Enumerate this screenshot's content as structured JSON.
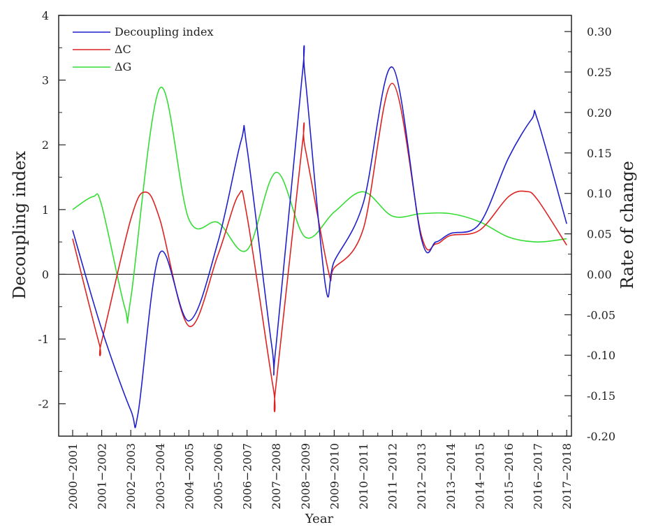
{
  "chart_data": {
    "type": "line",
    "xlabel": "Year",
    "ylabel_left": "Decoupling index",
    "ylabel_right": "Rate  of change",
    "grid": false,
    "legend_position": "top-left",
    "categories": [
      "2000−2001",
      "2001−2002",
      "2002−2003",
      "2003−2004",
      "2004−2005",
      "2005−2006",
      "2006−2007",
      "2007−2008",
      "2008−2009",
      "2009−2010",
      "2010−2011",
      "2011−2012",
      "2012−2013",
      "2013−2014",
      "2014−2015",
      "2015−2016",
      "2016−2017",
      "2017−2018"
    ],
    "left_axis": {
      "min": -2.5,
      "max": 4,
      "ticks": [
        4,
        3,
        2,
        1,
        0,
        -1,
        -2
      ],
      "tick_labels": [
        "4",
        "3",
        "2",
        "1",
        "0",
        "-1",
        "-2"
      ]
    },
    "right_axis": {
      "min": -0.2,
      "max": 0.32,
      "ticks": [
        0.3,
        0.25,
        0.2,
        0.15,
        0.1,
        0.05,
        0.0,
        -0.05,
        -0.1,
        -0.15,
        -0.2
      ],
      "tick_labels": [
        "0.30",
        "0.25",
        "0.20",
        "0.15",
        "0.10",
        "0.05",
        "0.00",
        "-0.05",
        "-0.10",
        "-0.15",
        "-0.20"
      ]
    },
    "series": [
      {
        "name": "Decoupling index",
        "axis": "left",
        "color": "#1f1fcc",
        "points": [
          [
            0,
            0.68
          ],
          [
            1,
            -0.85
          ],
          [
            2,
            -2.1
          ],
          [
            2.25,
            -2.15
          ],
          [
            3,
            0.33
          ],
          [
            4,
            -0.72
          ],
          [
            5,
            0.5
          ],
          [
            5.8,
            2.07
          ],
          [
            6,
            1.95
          ],
          [
            6.85,
            -1.1
          ],
          [
            7,
            -1.1
          ],
          [
            7.9,
            3.08
          ],
          [
            8,
            3.05
          ],
          [
            8.7,
            -0.18
          ],
          [
            9,
            0.2
          ],
          [
            10,
            1.1
          ],
          [
            11,
            3.2
          ],
          [
            12,
            0.55
          ],
          [
            12.5,
            0.5
          ],
          [
            13,
            0.63
          ],
          [
            14,
            0.78
          ],
          [
            15,
            1.8
          ],
          [
            15.8,
            2.4
          ],
          [
            16,
            2.38
          ],
          [
            17,
            0.78
          ]
        ]
      },
      {
        "name": "ΔC",
        "axis": "left",
        "color": "#dd2222",
        "points": [
          [
            0,
            0.55
          ],
          [
            0.9,
            -1.05
          ],
          [
            1,
            -1.03
          ],
          [
            2,
            0.85
          ],
          [
            2.5,
            1.27
          ],
          [
            3,
            0.85
          ],
          [
            4,
            -0.8
          ],
          [
            5,
            0.3
          ],
          [
            5.7,
            1.22
          ],
          [
            6,
            0.9
          ],
          [
            6.9,
            -1.75
          ],
          [
            7,
            -1.7
          ],
          [
            7.9,
            2.0
          ],
          [
            8,
            1.95
          ],
          [
            8.8,
            0.05
          ],
          [
            9,
            0.1
          ],
          [
            10,
            0.7
          ],
          [
            11,
            2.95
          ],
          [
            12,
            0.6
          ],
          [
            12.5,
            0.47
          ],
          [
            13,
            0.6
          ],
          [
            14,
            0.68
          ],
          [
            15,
            1.2
          ],
          [
            15.6,
            1.28
          ],
          [
            16,
            1.15
          ],
          [
            17,
            0.45
          ]
        ]
      },
      {
        "name": "ΔG",
        "axis": "right",
        "color": "#33dd33",
        "points": [
          [
            0,
            0.08
          ],
          [
            0.7,
            0.096
          ],
          [
            1,
            0.085
          ],
          [
            1.8,
            -0.042
          ],
          [
            2,
            -0.03
          ],
          [
            3,
            0.23
          ],
          [
            4,
            0.068
          ],
          [
            5,
            0.064
          ],
          [
            6,
            0.03
          ],
          [
            7,
            0.126
          ],
          [
            8,
            0.046
          ],
          [
            9,
            0.077
          ],
          [
            10,
            0.102
          ],
          [
            11,
            0.072
          ],
          [
            12,
            0.075
          ],
          [
            13,
            0.075
          ],
          [
            14,
            0.065
          ],
          [
            15,
            0.046
          ],
          [
            16,
            0.04
          ],
          [
            17,
            0.044
          ]
        ]
      }
    ]
  }
}
